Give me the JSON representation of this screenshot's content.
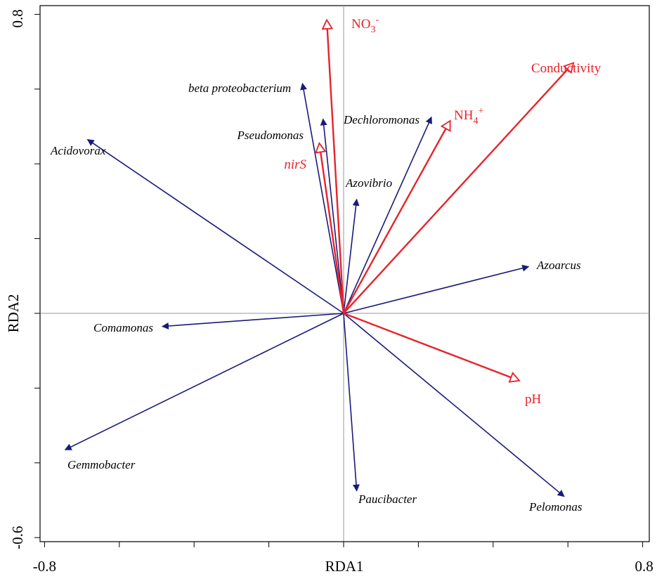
{
  "chart_data": {
    "type": "biplot",
    "xlabel": "RDA1",
    "ylabel": "RDA2",
    "xlim": [
      -0.8,
      0.8
    ],
    "ylim": [
      -0.6,
      0.8
    ],
    "x_tick_labels": [
      "-0.8",
      "0.8"
    ],
    "y_tick_labels": [
      "-0.6",
      "0.8"
    ],
    "species_color": "#1a1a7a",
    "env_color": "#e8232a",
    "species": [
      {
        "name": "Acidovorax",
        "x": -0.685,
        "y": 0.465
      },
      {
        "name": "beta proteobacterium",
        "x": -0.11,
        "y": 0.615
      },
      {
        "name": "Pseudomonas",
        "x": -0.055,
        "y": 0.52
      },
      {
        "name": "Dechloromonas",
        "x": 0.235,
        "y": 0.525
      },
      {
        "name": "Azovibrio",
        "x": 0.035,
        "y": 0.305
      },
      {
        "name": "Azoarcus",
        "x": 0.495,
        "y": 0.125
      },
      {
        "name": "Comamonas",
        "x": -0.485,
        "y": -0.035
      },
      {
        "name": "Gemmobacter",
        "x": -0.745,
        "y": -0.365
      },
      {
        "name": "Paucibacter",
        "x": 0.035,
        "y": -0.475
      },
      {
        "name": "Pelomonas",
        "x": 0.59,
        "y": -0.49
      }
    ],
    "environmental": [
      {
        "name": "NO",
        "sub": "3",
        "sup": "-",
        "x": -0.045,
        "y": 0.785
      },
      {
        "name": "Conductivity",
        "sub": "",
        "sup": "",
        "x": 0.615,
        "y": 0.67
      },
      {
        "name": "NH",
        "sub": "4",
        "sup": "+",
        "x": 0.285,
        "y": 0.515
      },
      {
        "name": "nirS",
        "sub": "",
        "sup": "",
        "x": -0.065,
        "y": 0.455,
        "italic": true
      },
      {
        "name": "pH",
        "sub": "",
        "sup": "",
        "x": 0.47,
        "y": -0.18
      }
    ]
  }
}
